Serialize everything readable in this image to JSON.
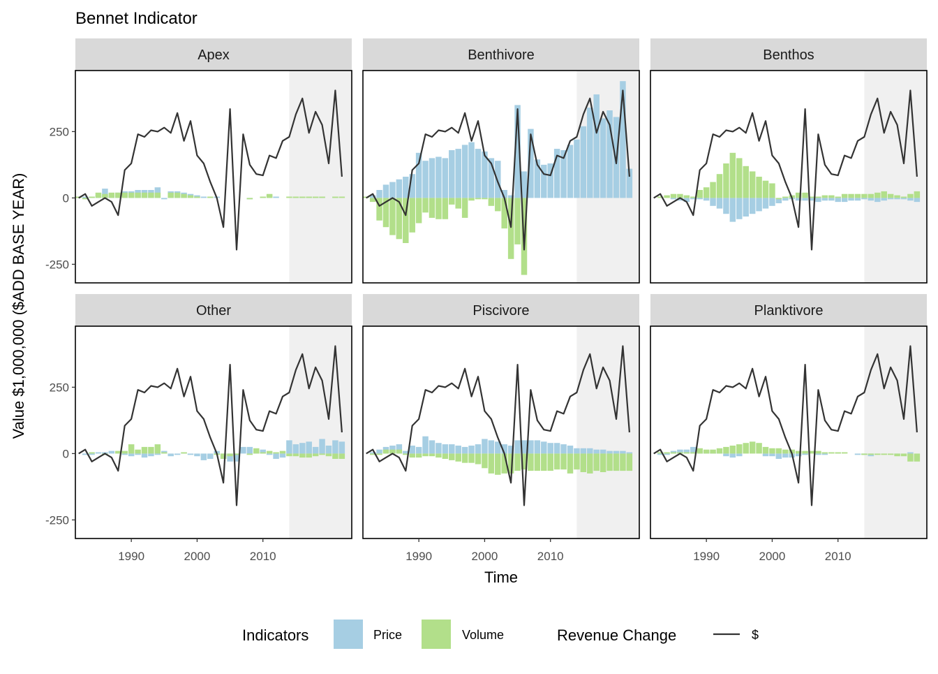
{
  "chart_data": {
    "type": "bar",
    "title": "Bennet Indicator",
    "xlabel": "Time",
    "ylabel": "Value $1,000,000 ($ADD BASE YEAR)",
    "xlim": [
      1981.5,
      2023.5
    ],
    "ylim": [
      -320,
      480
    ],
    "x_ticks": [
      1990,
      2000,
      2010
    ],
    "y_ticks": [
      -250,
      0,
      250
    ],
    "grid": false,
    "shaded_region": [
      2014,
      2023.5
    ],
    "legend": {
      "position": "bottom",
      "indicators_title": "Indicators",
      "price_label": "Price",
      "volume_label": "Volume",
      "revenue_title": "Revenue Change",
      "revenue_label": "$"
    },
    "colors": {
      "price": "#a6cee3",
      "volume": "#b2df8a",
      "revenue": "#333333",
      "strip": "#d9d9d9",
      "shade": "#f0f0f0"
    },
    "years": [
      1982,
      1983,
      1984,
      1985,
      1986,
      1987,
      1988,
      1989,
      1990,
      1991,
      1992,
      1993,
      1994,
      1995,
      1996,
      1997,
      1998,
      1999,
      2000,
      2001,
      2002,
      2003,
      2004,
      2005,
      2006,
      2007,
      2008,
      2009,
      2010,
      2011,
      2012,
      2013,
      2014,
      2015,
      2016,
      2017,
      2018,
      2019,
      2020,
      2021,
      2022
    ],
    "revenue_change": [
      0,
      15,
      -30,
      -15,
      0,
      -15,
      -65,
      105,
      130,
      240,
      230,
      255,
      250,
      265,
      245,
      320,
      215,
      290,
      160,
      130,
      60,
      0,
      -110,
      335,
      -195,
      240,
      125,
      90,
      85,
      160,
      150,
      215,
      230,
      315,
      375,
      245,
      325,
      275,
      130,
      405,
      80
    ],
    "panels": [
      {
        "name": "Apex",
        "price": [
          0,
          5,
          5,
          10,
          35,
          10,
          20,
          25,
          25,
          30,
          30,
          30,
          40,
          -5,
          25,
          25,
          20,
          15,
          10,
          5,
          5,
          5,
          0,
          0,
          0,
          0,
          -5,
          0,
          5,
          10,
          5,
          0,
          0,
          5,
          5,
          5,
          5,
          5,
          0,
          5,
          0
        ],
        "volume": [
          5,
          -5,
          5,
          20,
          15,
          20,
          20,
          20,
          20,
          20,
          20,
          20,
          20,
          0,
          20,
          20,
          15,
          10,
          5,
          0,
          5,
          0,
          0,
          0,
          0,
          0,
          -5,
          0,
          5,
          15,
          0,
          0,
          5,
          5,
          5,
          5,
          5,
          5,
          0,
          5,
          5
        ]
      },
      {
        "name": "Benthivore",
        "price": [
          0,
          10,
          30,
          50,
          60,
          70,
          80,
          90,
          170,
          140,
          150,
          155,
          150,
          180,
          185,
          200,
          210,
          185,
          175,
          150,
          140,
          30,
          10,
          350,
          100,
          260,
          145,
          125,
          130,
          185,
          180,
          200,
          220,
          270,
          340,
          390,
          300,
          330,
          305,
          440,
          110
        ],
        "volume": [
          5,
          -15,
          -85,
          -110,
          -140,
          -155,
          -170,
          -130,
          -95,
          -55,
          -75,
          -80,
          -80,
          -25,
          -40,
          -75,
          -10,
          -5,
          -5,
          -30,
          -50,
          -115,
          -230,
          -175,
          -290,
          0,
          0,
          0,
          0,
          0,
          0,
          0,
          0,
          0,
          0,
          0,
          0,
          0,
          0,
          0,
          0
        ]
      },
      {
        "name": "Benthos",
        "price": [
          0,
          0,
          0,
          -5,
          -10,
          -15,
          -5,
          -5,
          -10,
          -30,
          -40,
          -60,
          -90,
          -80,
          -70,
          -60,
          -50,
          -40,
          -30,
          -20,
          -10,
          -5,
          -10,
          -10,
          -10,
          -15,
          -10,
          -10,
          -15,
          -15,
          -10,
          -10,
          -5,
          -10,
          -15,
          -10,
          -5,
          -5,
          -5,
          -10,
          -15
        ],
        "volume": [
          0,
          5,
          10,
          15,
          15,
          10,
          5,
          30,
          40,
          60,
          90,
          130,
          170,
          150,
          120,
          100,
          80,
          65,
          55,
          -5,
          5,
          10,
          20,
          20,
          5,
          5,
          10,
          10,
          5,
          15,
          15,
          15,
          15,
          15,
          20,
          25,
          15,
          10,
          5,
          15,
          25
        ]
      },
      {
        "name": "Other",
        "price": [
          0,
          -5,
          -5,
          5,
          5,
          10,
          5,
          -5,
          -10,
          -5,
          -15,
          -10,
          -5,
          10,
          -10,
          -5,
          5,
          -5,
          -10,
          -25,
          -20,
          10,
          -20,
          -30,
          -30,
          25,
          25,
          10,
          15,
          -5,
          -20,
          -15,
          50,
          35,
          40,
          45,
          25,
          55,
          30,
          50,
          45
        ],
        "volume": [
          0,
          0,
          5,
          0,
          -5,
          0,
          10,
          10,
          35,
          15,
          25,
          25,
          35,
          5,
          0,
          0,
          5,
          0,
          0,
          0,
          0,
          -5,
          -20,
          -10,
          -5,
          0,
          -5,
          20,
          5,
          10,
          5,
          10,
          -10,
          -10,
          -15,
          -15,
          -10,
          -5,
          -10,
          -20,
          -20
        ]
      },
      {
        "name": "Piscivore",
        "price": [
          0,
          5,
          15,
          25,
          30,
          35,
          10,
          30,
          25,
          65,
          50,
          40,
          35,
          35,
          30,
          25,
          30,
          35,
          55,
          50,
          45,
          35,
          30,
          50,
          50,
          50,
          50,
          45,
          40,
          40,
          35,
          30,
          20,
          20,
          20,
          15,
          15,
          10,
          10,
          10,
          5
        ],
        "volume": [
          0,
          -5,
          -5,
          15,
          15,
          15,
          -5,
          -15,
          -15,
          -10,
          -10,
          -15,
          -20,
          -25,
          -30,
          -35,
          -35,
          -40,
          -55,
          -75,
          -80,
          -75,
          -75,
          -65,
          -60,
          -65,
          -65,
          -65,
          -65,
          -60,
          -60,
          -75,
          -60,
          -70,
          -75,
          -65,
          -70,
          -65,
          -65,
          -65,
          -65
        ]
      },
      {
        "name": "Planktivore",
        "price": [
          0,
          -5,
          -5,
          10,
          15,
          15,
          25,
          10,
          10,
          5,
          5,
          -10,
          -15,
          -10,
          0,
          0,
          0,
          -10,
          -10,
          -20,
          -15,
          -15,
          -10,
          -5,
          0,
          -5,
          -5,
          0,
          5,
          0,
          0,
          -5,
          -5,
          -10,
          0,
          0,
          0,
          -5,
          0,
          5,
          0
        ],
        "volume": [
          0,
          5,
          5,
          5,
          5,
          5,
          5,
          20,
          15,
          15,
          20,
          25,
          30,
          35,
          40,
          45,
          40,
          25,
          20,
          20,
          15,
          15,
          10,
          10,
          10,
          10,
          5,
          5,
          5,
          5,
          0,
          0,
          -5,
          -5,
          -5,
          -5,
          -5,
          -10,
          -10,
          -30,
          -30
        ]
      }
    ]
  }
}
